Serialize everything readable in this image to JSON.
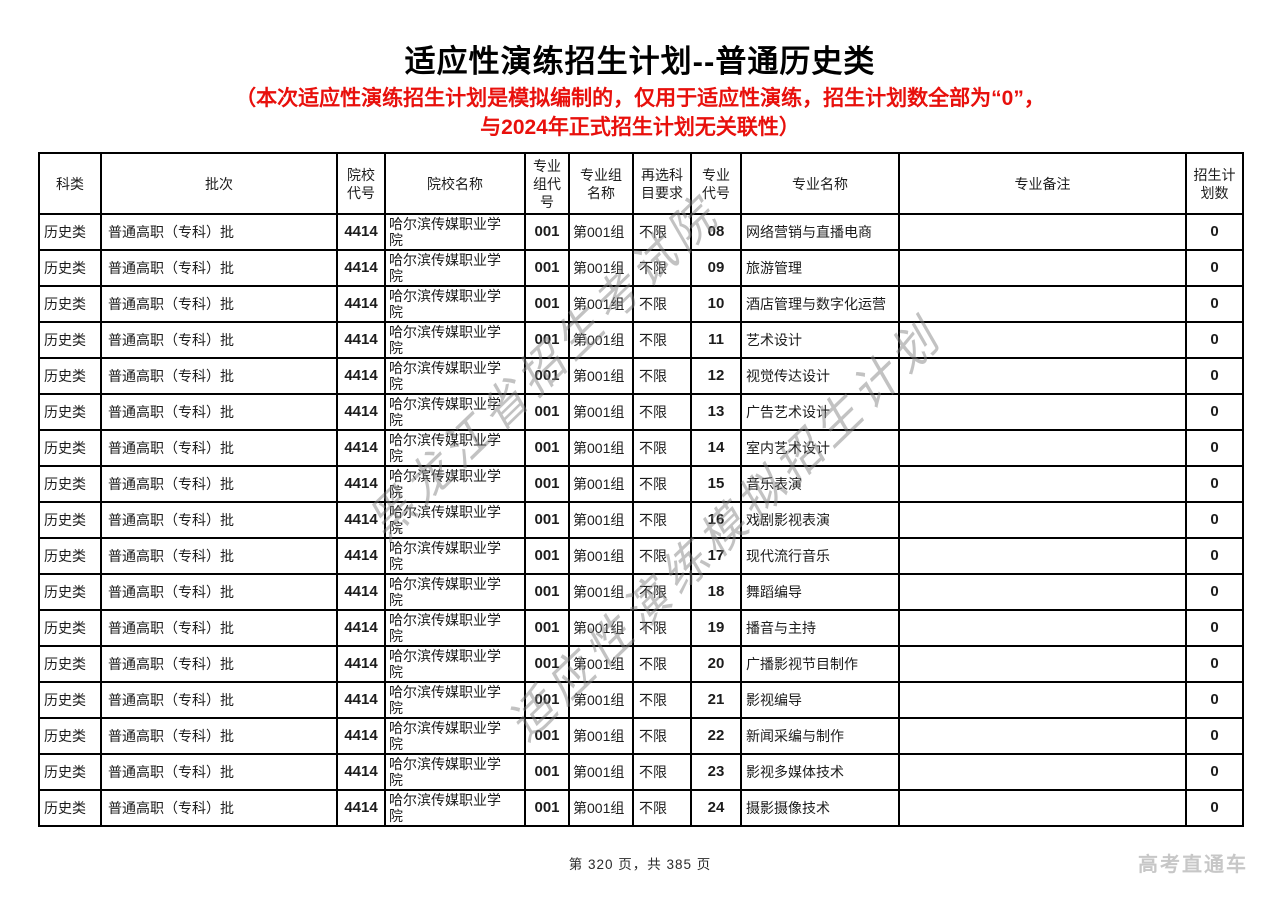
{
  "page": {
    "title": "适应性演练招生计划--普通历史类",
    "notice_line1": "（本次适应性演练招生计划是模拟编制的，仅用于适应性演练，招生计划数全部为“0”，",
    "notice_line2": "与2024年正式招生计划无关联性）",
    "footer_page": "第 320 页，共 385 页",
    "logo": "高考直通车",
    "watermark_line1": "黑龙江省招生考试院",
    "watermark_line2": "适应性演练模拟招生计划",
    "theme": {
      "notice_red": "#e8100c",
      "watermark_gray": "#808080",
      "logo_gray": "#c7c7c7",
      "border_black": "#000000"
    }
  },
  "table": {
    "headers": [
      "科类",
      "批次",
      "院校代号",
      "院校名称",
      "专业组代号",
      "专业组名称",
      "再选科目要求",
      "专业代号",
      "专业名称",
      "专业备注",
      "招生计划数"
    ],
    "column_keys": [
      "subject",
      "batch",
      "college_code",
      "college_name",
      "group_code",
      "group_name",
      "subject_requirement",
      "major_code",
      "major_name",
      "major_note",
      "plan_count"
    ],
    "rows": [
      {
        "subject": "历史类",
        "batch": "普通高职（专科）批",
        "college_code": "4414",
        "college_name": "哈尔滨传媒职业学院",
        "group_code": "001",
        "group_name": "第001组",
        "subject_requirement": "不限",
        "major_code": "08",
        "major_name": "网络营销与直播电商",
        "major_note": "",
        "plan_count": "0"
      },
      {
        "subject": "历史类",
        "batch": "普通高职（专科）批",
        "college_code": "4414",
        "college_name": "哈尔滨传媒职业学院",
        "group_code": "001",
        "group_name": "第001组",
        "subject_requirement": "不限",
        "major_code": "09",
        "major_name": "旅游管理",
        "major_note": "",
        "plan_count": "0"
      },
      {
        "subject": "历史类",
        "batch": "普通高职（专科）批",
        "college_code": "4414",
        "college_name": "哈尔滨传媒职业学院",
        "group_code": "001",
        "group_name": "第001组",
        "subject_requirement": "不限",
        "major_code": "10",
        "major_name": "酒店管理与数字化运营",
        "major_note": "",
        "plan_count": "0"
      },
      {
        "subject": "历史类",
        "batch": "普通高职（专科）批",
        "college_code": "4414",
        "college_name": "哈尔滨传媒职业学院",
        "group_code": "001",
        "group_name": "第001组",
        "subject_requirement": "不限",
        "major_code": "11",
        "major_name": "艺术设计",
        "major_note": "",
        "plan_count": "0"
      },
      {
        "subject": "历史类",
        "batch": "普通高职（专科）批",
        "college_code": "4414",
        "college_name": "哈尔滨传媒职业学院",
        "group_code": "001",
        "group_name": "第001组",
        "subject_requirement": "不限",
        "major_code": "12",
        "major_name": "视觉传达设计",
        "major_note": "",
        "plan_count": "0"
      },
      {
        "subject": "历史类",
        "batch": "普通高职（专科）批",
        "college_code": "4414",
        "college_name": "哈尔滨传媒职业学院",
        "group_code": "001",
        "group_name": "第001组",
        "subject_requirement": "不限",
        "major_code": "13",
        "major_name": "广告艺术设计",
        "major_note": "",
        "plan_count": "0"
      },
      {
        "subject": "历史类",
        "batch": "普通高职（专科）批",
        "college_code": "4414",
        "college_name": "哈尔滨传媒职业学院",
        "group_code": "001",
        "group_name": "第001组",
        "subject_requirement": "不限",
        "major_code": "14",
        "major_name": "室内艺术设计",
        "major_note": "",
        "plan_count": "0"
      },
      {
        "subject": "历史类",
        "batch": "普通高职（专科）批",
        "college_code": "4414",
        "college_name": "哈尔滨传媒职业学院",
        "group_code": "001",
        "group_name": "第001组",
        "subject_requirement": "不限",
        "major_code": "15",
        "major_name": "音乐表演",
        "major_note": "",
        "plan_count": "0"
      },
      {
        "subject": "历史类",
        "batch": "普通高职（专科）批",
        "college_code": "4414",
        "college_name": "哈尔滨传媒职业学院",
        "group_code": "001",
        "group_name": "第001组",
        "subject_requirement": "不限",
        "major_code": "16",
        "major_name": "戏剧影视表演",
        "major_note": "",
        "plan_count": "0"
      },
      {
        "subject": "历史类",
        "batch": "普通高职（专科）批",
        "college_code": "4414",
        "college_name": "哈尔滨传媒职业学院",
        "group_code": "001",
        "group_name": "第001组",
        "subject_requirement": "不限",
        "major_code": "17",
        "major_name": "现代流行音乐",
        "major_note": "",
        "plan_count": "0"
      },
      {
        "subject": "历史类",
        "batch": "普通高职（专科）批",
        "college_code": "4414",
        "college_name": "哈尔滨传媒职业学院",
        "group_code": "001",
        "group_name": "第001组",
        "subject_requirement": "不限",
        "major_code": "18",
        "major_name": "舞蹈编导",
        "major_note": "",
        "plan_count": "0"
      },
      {
        "subject": "历史类",
        "batch": "普通高职（专科）批",
        "college_code": "4414",
        "college_name": "哈尔滨传媒职业学院",
        "group_code": "001",
        "group_name": "第001组",
        "subject_requirement": "不限",
        "major_code": "19",
        "major_name": "播音与主持",
        "major_note": "",
        "plan_count": "0"
      },
      {
        "subject": "历史类",
        "batch": "普通高职（专科）批",
        "college_code": "4414",
        "college_name": "哈尔滨传媒职业学院",
        "group_code": "001",
        "group_name": "第001组",
        "subject_requirement": "不限",
        "major_code": "20",
        "major_name": "广播影视节目制作",
        "major_note": "",
        "plan_count": "0"
      },
      {
        "subject": "历史类",
        "batch": "普通高职（专科）批",
        "college_code": "4414",
        "college_name": "哈尔滨传媒职业学院",
        "group_code": "001",
        "group_name": "第001组",
        "subject_requirement": "不限",
        "major_code": "21",
        "major_name": "影视编导",
        "major_note": "",
        "plan_count": "0"
      },
      {
        "subject": "历史类",
        "batch": "普通高职（专科）批",
        "college_code": "4414",
        "college_name": "哈尔滨传媒职业学院",
        "group_code": "001",
        "group_name": "第001组",
        "subject_requirement": "不限",
        "major_code": "22",
        "major_name": "新闻采编与制作",
        "major_note": "",
        "plan_count": "0"
      },
      {
        "subject": "历史类",
        "batch": "普通高职（专科）批",
        "college_code": "4414",
        "college_name": "哈尔滨传媒职业学院",
        "group_code": "001",
        "group_name": "第001组",
        "subject_requirement": "不限",
        "major_code": "23",
        "major_name": "影视多媒体技术",
        "major_note": "",
        "plan_count": "0"
      },
      {
        "subject": "历史类",
        "batch": "普通高职（专科）批",
        "college_code": "4414",
        "college_name": "哈尔滨传媒职业学院",
        "group_code": "001",
        "group_name": "第001组",
        "subject_requirement": "不限",
        "major_code": "24",
        "major_name": "摄影摄像技术",
        "major_note": "",
        "plan_count": "0"
      }
    ]
  }
}
